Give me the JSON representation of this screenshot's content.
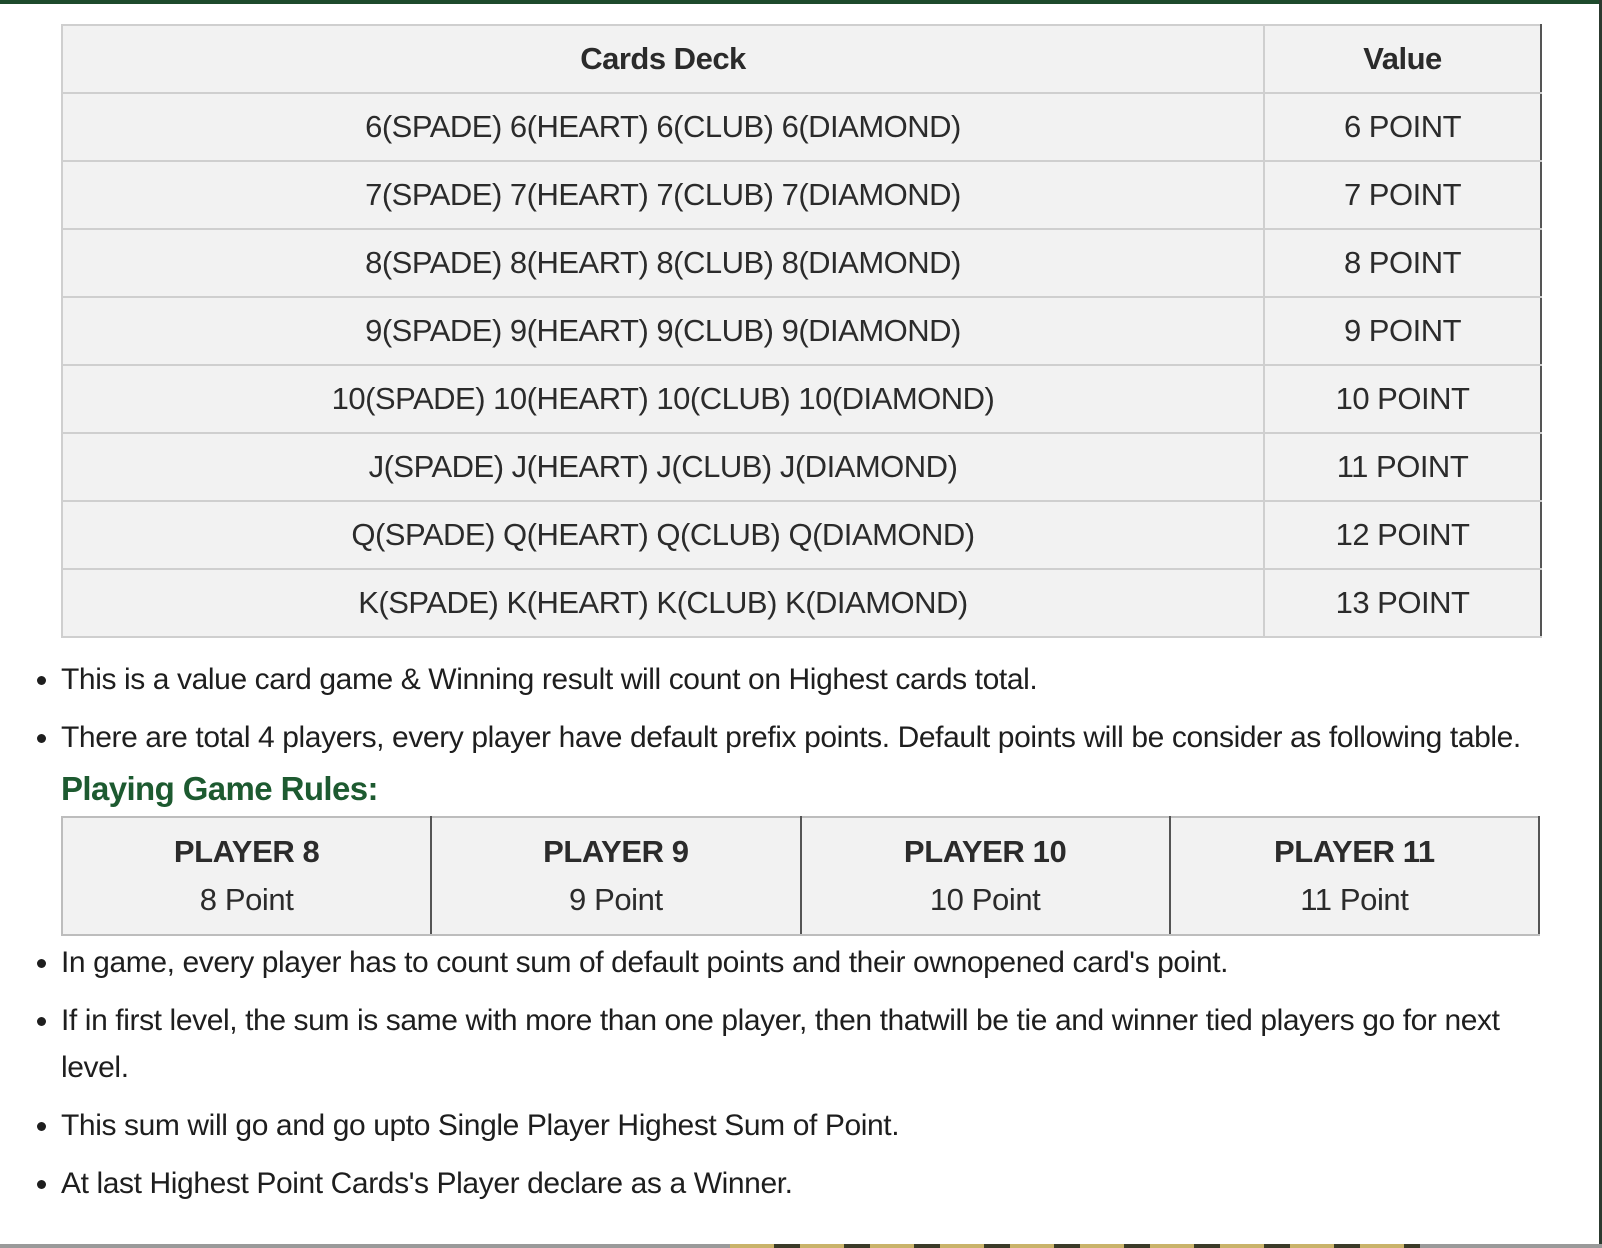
{
  "deck_table": {
    "headers": [
      "Cards Deck",
      "Value"
    ],
    "rows": [
      {
        "cards": "6(SPADE) 6(HEART) 6(CLUB) 6(DIAMOND)",
        "value": "6 POINT"
      },
      {
        "cards": "7(SPADE) 7(HEART) 7(CLUB) 7(DIAMOND)",
        "value": "7 POINT"
      },
      {
        "cards": "8(SPADE) 8(HEART) 8(CLUB) 8(DIAMOND)",
        "value": "8 POINT"
      },
      {
        "cards": "9(SPADE) 9(HEART) 9(CLUB) 9(DIAMOND)",
        "value": "9 POINT"
      },
      {
        "cards": "10(SPADE) 10(HEART) 10(CLUB) 10(DIAMOND)",
        "value": "10 POINT"
      },
      {
        "cards": "J(SPADE) J(HEART) J(CLUB) J(DIAMOND)",
        "value": "11 POINT"
      },
      {
        "cards": "Q(SPADE) Q(HEART) Q(CLUB) Q(DIAMOND)",
        "value": "12 POINT"
      },
      {
        "cards": "K(SPADE) K(HEART) K(CLUB) K(DIAMOND)",
        "value": "13 POINT"
      }
    ]
  },
  "intro_bullets": [
    "This is a value card game & Winning result will count on Highest cards total.",
    "There are total 4 players, every player have default prefix points. Default points will be consider as following table."
  ],
  "rules_heading": "Playing Game Rules:",
  "players_table": [
    {
      "name": "PLAYER 8",
      "points": "8 Point"
    },
    {
      "name": "PLAYER 9",
      "points": "9 Point"
    },
    {
      "name": "PLAYER 10",
      "points": "10 Point"
    },
    {
      "name": "PLAYER 11",
      "points": "11 Point"
    }
  ],
  "rule_bullets": [
    "In game, every player has to count sum of default points and their ownopened card's point.",
    "If in first level, the sum is same with more than one player, then thatwill be tie and winner tied players go for next level.",
    "This sum will go and go upto Single Player Highest Sum of Point.",
    "At last Highest Point Cards's Player declare as a Winner."
  ],
  "colors": {
    "accent": "#1d5a30",
    "table_bg": "#f2f2f2",
    "top_border": "#1d4a2c"
  }
}
